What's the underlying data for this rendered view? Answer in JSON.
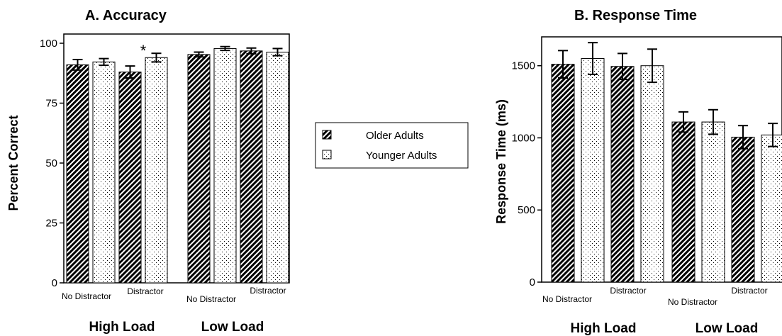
{
  "chart_data": [
    {
      "panel": "accuracy",
      "type": "bar",
      "title": "A.  Accuracy",
      "ylabel": "Percent Correct",
      "ylim": [
        0,
        100
      ],
      "yticks": [
        0,
        25,
        50,
        75,
        100
      ],
      "ytick_labels": [
        "0",
        "25",
        "50",
        "75",
        "100"
      ],
      "groups": [
        "High Load",
        "Low Load"
      ],
      "conditions": [
        "No Distractor",
        "Distractor"
      ],
      "series": [
        {
          "name": "Older Adults",
          "values": [
            91,
            88,
            95.3,
            96.8
          ],
          "errors": [
            2.2,
            2.5,
            1,
            1.2
          ]
        },
        {
          "name": "Younger Adults",
          "values": [
            92.2,
            94,
            97.8,
            96.3
          ],
          "errors": [
            1.4,
            1.8,
            0.8,
            1.5
          ]
        }
      ],
      "annotations": [
        {
          "text": "*",
          "group": "High Load",
          "condition": "Distractor"
        }
      ]
    },
    {
      "panel": "response_time",
      "type": "bar",
      "title": "B. Response Time",
      "ylabel": "Response Time (ms)",
      "ylim": [
        0,
        1700
      ],
      "yticks": [
        0,
        500,
        1000,
        1500
      ],
      "ytick_labels": [
        "0",
        "500",
        "1000",
        "1500"
      ],
      "groups": [
        "High Load",
        "Low Load"
      ],
      "conditions": [
        "No Distractor",
        "Distractor"
      ],
      "series": [
        {
          "name": "Older Adults",
          "values": [
            1510,
            1495,
            1110,
            1005
          ],
          "errors": [
            95,
            90,
            70,
            80
          ]
        },
        {
          "name": "Younger Adults",
          "values": [
            1550,
            1500,
            1110,
            1020
          ],
          "errors": [
            110,
            115,
            85,
            80
          ]
        }
      ]
    }
  ],
  "legend": {
    "position": "center",
    "items": [
      {
        "label": "Older Adults",
        "pattern": "hatched"
      },
      {
        "label": "Younger Adults",
        "pattern": "dotted"
      }
    ]
  },
  "colors": {
    "bar_outline": "#000000",
    "hatch": "#000000",
    "dots": "#000000",
    "background": "#ffffff"
  }
}
